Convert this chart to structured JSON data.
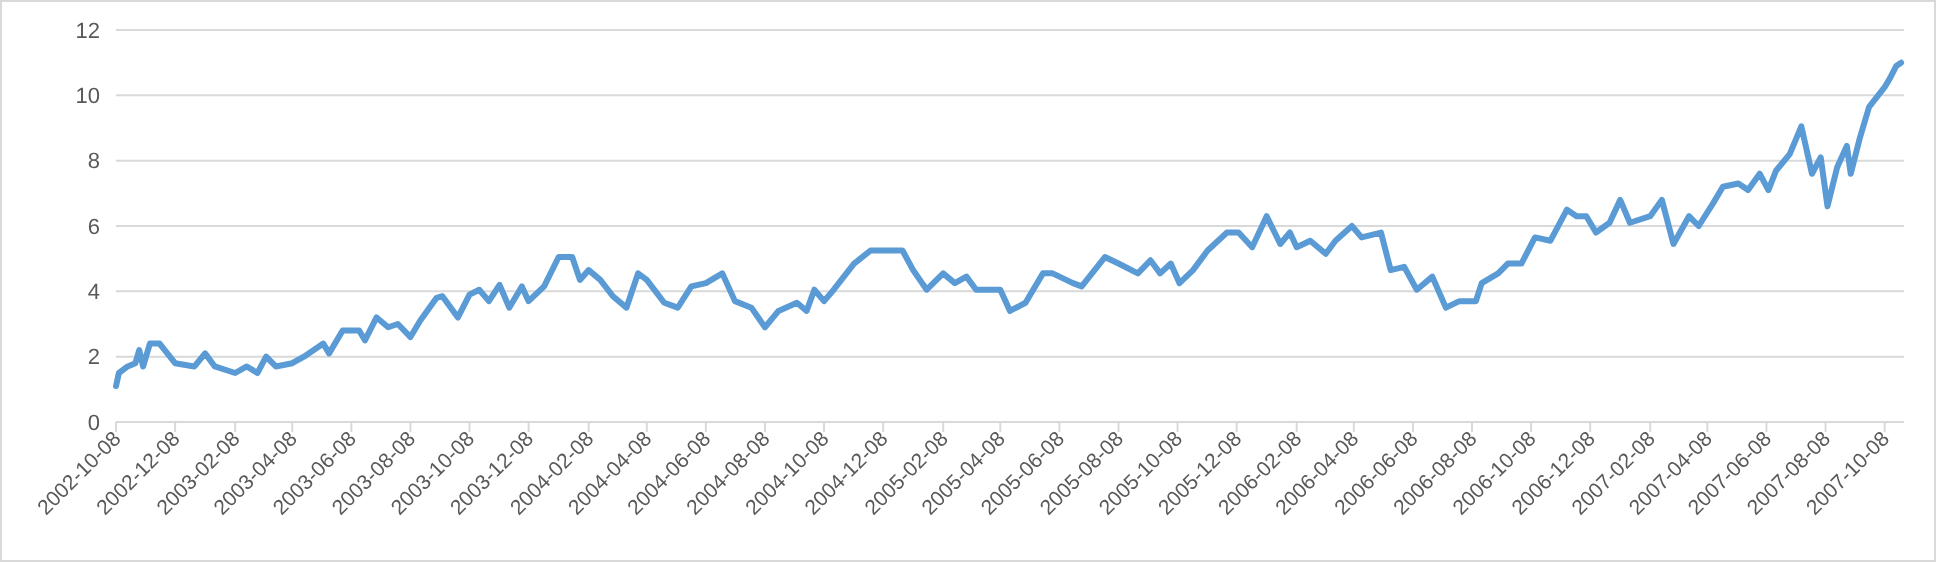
{
  "chart_data": {
    "type": "line",
    "x": [
      "2002-10-08",
      "2002-10-11",
      "2002-10-20",
      "2002-10-28",
      "2002-11-01",
      "2002-11-05",
      "2002-11-12",
      "2002-11-22",
      "2002-12-08",
      "2002-12-28",
      "2003-01-08",
      "2003-01-18",
      "2003-02-08",
      "2003-02-20",
      "2003-03-03",
      "2003-03-12",
      "2003-03-22",
      "2003-04-08",
      "2003-04-20",
      "2003-05-10",
      "2003-05-16",
      "2003-05-30",
      "2003-06-16",
      "2003-06-22",
      "2003-07-04",
      "2003-07-16",
      "2003-07-26",
      "2003-08-08",
      "2003-08-18",
      "2003-09-04",
      "2003-09-10",
      "2003-09-26",
      "2003-10-08",
      "2003-10-18",
      "2003-10-28",
      "2003-11-08",
      "2003-11-18",
      "2003-12-01",
      "2003-12-08",
      "2003-12-24",
      "2004-01-08",
      "2004-01-22",
      "2004-01-30",
      "2004-02-08",
      "2004-02-20",
      "2004-03-04",
      "2004-03-18",
      "2004-03-30",
      "2004-04-08",
      "2004-04-26",
      "2004-05-10",
      "2004-05-24",
      "2004-06-08",
      "2004-06-25",
      "2004-07-08",
      "2004-07-25",
      "2004-08-08",
      "2004-08-22",
      "2004-09-10",
      "2004-09-20",
      "2004-09-28",
      "2004-10-08",
      "2004-10-18",
      "2004-11-08",
      "2004-11-25",
      "2004-12-15",
      "2004-12-28",
      "2005-01-08",
      "2005-01-22",
      "2005-02-08",
      "2005-02-20",
      "2005-03-04",
      "2005-03-14",
      "2005-04-08",
      "2005-04-18",
      "2005-05-04",
      "2005-05-22",
      "2005-06-01",
      "2005-06-22",
      "2005-07-01",
      "2005-07-25",
      "2005-08-08",
      "2005-08-28",
      "2005-09-10",
      "2005-09-20",
      "2005-10-01",
      "2005-10-10",
      "2005-10-24",
      "2005-11-08",
      "2005-11-28",
      "2005-12-10",
      "2005-12-24",
      "2006-01-08",
      "2006-01-22",
      "2006-02-01",
      "2006-02-08",
      "2006-02-22",
      "2006-03-10",
      "2006-03-20",
      "2006-04-06",
      "2006-04-16",
      "2006-05-06",
      "2006-05-16",
      "2006-05-30",
      "2006-06-12",
      "2006-06-28",
      "2006-07-12",
      "2006-07-26",
      "2006-08-12",
      "2006-08-18",
      "2006-09-04",
      "2006-09-14",
      "2006-09-28",
      "2006-10-12",
      "2006-10-28",
      "2006-11-14",
      "2006-11-24",
      "2006-12-04",
      "2006-12-14",
      "2006-12-28",
      "2007-01-08",
      "2007-01-18",
      "2007-02-08",
      "2007-02-20",
      "2007-03-04",
      "2007-03-20",
      "2007-03-30",
      "2007-04-14",
      "2007-04-24",
      "2007-05-10",
      "2007-05-20",
      "2007-06-01",
      "2007-06-10",
      "2007-06-18",
      "2007-07-02",
      "2007-07-14",
      "2007-07-25",
      "2007-08-03",
      "2007-08-10",
      "2007-08-20",
      "2007-08-30",
      "2007-09-03",
      "2007-09-12",
      "2007-09-22",
      "2007-10-08",
      "2007-10-14",
      "2007-10-20",
      "2007-10-25"
    ],
    "series": [
      {
        "color": "#5b9bd5",
        "values": [
          1.1,
          1.5,
          1.7,
          1.8,
          2.2,
          1.7,
          2.4,
          2.4,
          1.8,
          1.7,
          2.1,
          1.7,
          1.5,
          1.7,
          1.5,
          2.0,
          1.7,
          1.8,
          2.0,
          2.4,
          2.1,
          2.8,
          2.8,
          2.5,
          3.2,
          2.9,
          3.0,
          2.6,
          3.1,
          3.8,
          3.85,
          3.2,
          3.9,
          4.05,
          3.7,
          4.2,
          3.5,
          4.15,
          3.7,
          4.15,
          5.05,
          5.05,
          4.35,
          4.65,
          4.35,
          3.85,
          3.5,
          4.55,
          4.35,
          3.65,
          3.5,
          4.15,
          4.25,
          4.55,
          3.7,
          3.5,
          2.9,
          3.4,
          3.65,
          3.4,
          4.05,
          3.7,
          4.05,
          4.85,
          5.25,
          5.25,
          5.25,
          4.65,
          4.05,
          4.55,
          4.25,
          4.45,
          4.05,
          4.05,
          3.4,
          3.65,
          4.55,
          4.55,
          4.25,
          4.15,
          5.05,
          4.85,
          4.55,
          4.95,
          4.55,
          4.85,
          4.25,
          4.65,
          5.25,
          5.8,
          5.8,
          5.35,
          6.3,
          5.45,
          5.8,
          5.35,
          5.55,
          5.15,
          5.55,
          6.0,
          5.65,
          5.8,
          4.65,
          4.75,
          4.05,
          4.45,
          3.5,
          3.7,
          3.7,
          4.25,
          4.55,
          4.85,
          4.85,
          5.65,
          5.55,
          6.5,
          6.3,
          6.3,
          5.8,
          6.1,
          6.8,
          6.1,
          6.3,
          6.8,
          5.45,
          6.3,
          6.0,
          6.7,
          7.2,
          7.3,
          7.1,
          7.6,
          7.1,
          7.7,
          8.2,
          9.05,
          7.6,
          8.1,
          6.6,
          7.8,
          8.45,
          7.6,
          8.65,
          9.65,
          10.25,
          10.55,
          10.9,
          11.0
        ]
      }
    ],
    "xlim": [
      "2002-10-08",
      "2007-10-28"
    ],
    "xticks": [
      "2002-10-08",
      "2002-12-08",
      "2003-02-08",
      "2003-04-08",
      "2003-06-08",
      "2003-08-08",
      "2003-10-08",
      "2003-12-08",
      "2004-02-08",
      "2004-04-08",
      "2004-06-08",
      "2004-08-08",
      "2004-10-08",
      "2004-12-08",
      "2005-02-08",
      "2005-04-08",
      "2005-06-08",
      "2005-08-08",
      "2005-10-08",
      "2005-12-08",
      "2006-02-08",
      "2006-04-08",
      "2006-06-08",
      "2006-08-08",
      "2006-10-08",
      "2006-12-08",
      "2007-02-08",
      "2007-04-08",
      "2007-06-08",
      "2007-08-08",
      "2007-10-08"
    ],
    "ylim": [
      0,
      12
    ],
    "yticks": [
      0,
      2,
      4,
      6,
      8,
      10,
      12
    ],
    "grid": "y",
    "marker": "none",
    "line_style": "solid"
  }
}
